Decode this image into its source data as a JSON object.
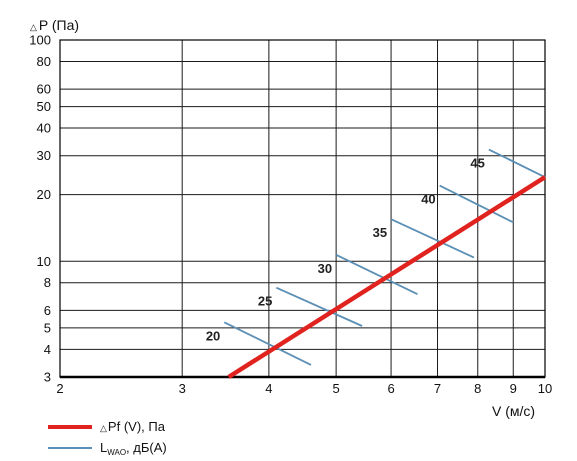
{
  "chart_data": {
    "type": "line",
    "title": "",
    "ylabel_symbol": "△",
    "ylabel": "P (Па)",
    "xlabel": "V (м/с)",
    "x_scale": "log",
    "y_scale": "log",
    "xlim": [
      2,
      10
    ],
    "ylim": [
      3,
      100
    ],
    "x_ticks": [
      2,
      3,
      4,
      5,
      6,
      7,
      8,
      9,
      10
    ],
    "y_ticks": [
      3,
      4,
      5,
      6,
      8,
      10,
      20,
      30,
      40,
      50,
      60,
      80,
      100
    ],
    "grid": true,
    "legend_position": "bottom-left",
    "series": [
      {
        "name": "△Pf (V), Па",
        "legend_symbol": "△",
        "legend_text": "Pf (V), Па",
        "color": "#e0231f",
        "x": [
          3.5,
          10
        ],
        "y": [
          3,
          24
        ]
      }
    ],
    "noise_series": {
      "legend_main": "L",
      "legend_sub": "WAO",
      "legend_rest": ", дБ(А)",
      "color": "#5b8fb5",
      "levels": [
        {
          "label": "20",
          "x": [
            3.45,
            4.6
          ],
          "y": [
            5.3,
            3.4
          ]
        },
        {
          "label": "25",
          "x": [
            4.1,
            5.45
          ],
          "y": [
            7.6,
            5.1
          ]
        },
        {
          "label": "30",
          "x": [
            5.0,
            6.55
          ],
          "y": [
            10.7,
            7.1
          ]
        },
        {
          "label": "35",
          "x": [
            6.0,
            7.9
          ],
          "y": [
            15.5,
            10.4
          ]
        },
        {
          "label": "40",
          "x": [
            7.05,
            9.0
          ],
          "y": [
            22.0,
            15.0
          ]
        },
        {
          "label": "45",
          "x": [
            8.3,
            10.0
          ],
          "y": [
            32.0,
            24.0
          ]
        }
      ]
    }
  }
}
